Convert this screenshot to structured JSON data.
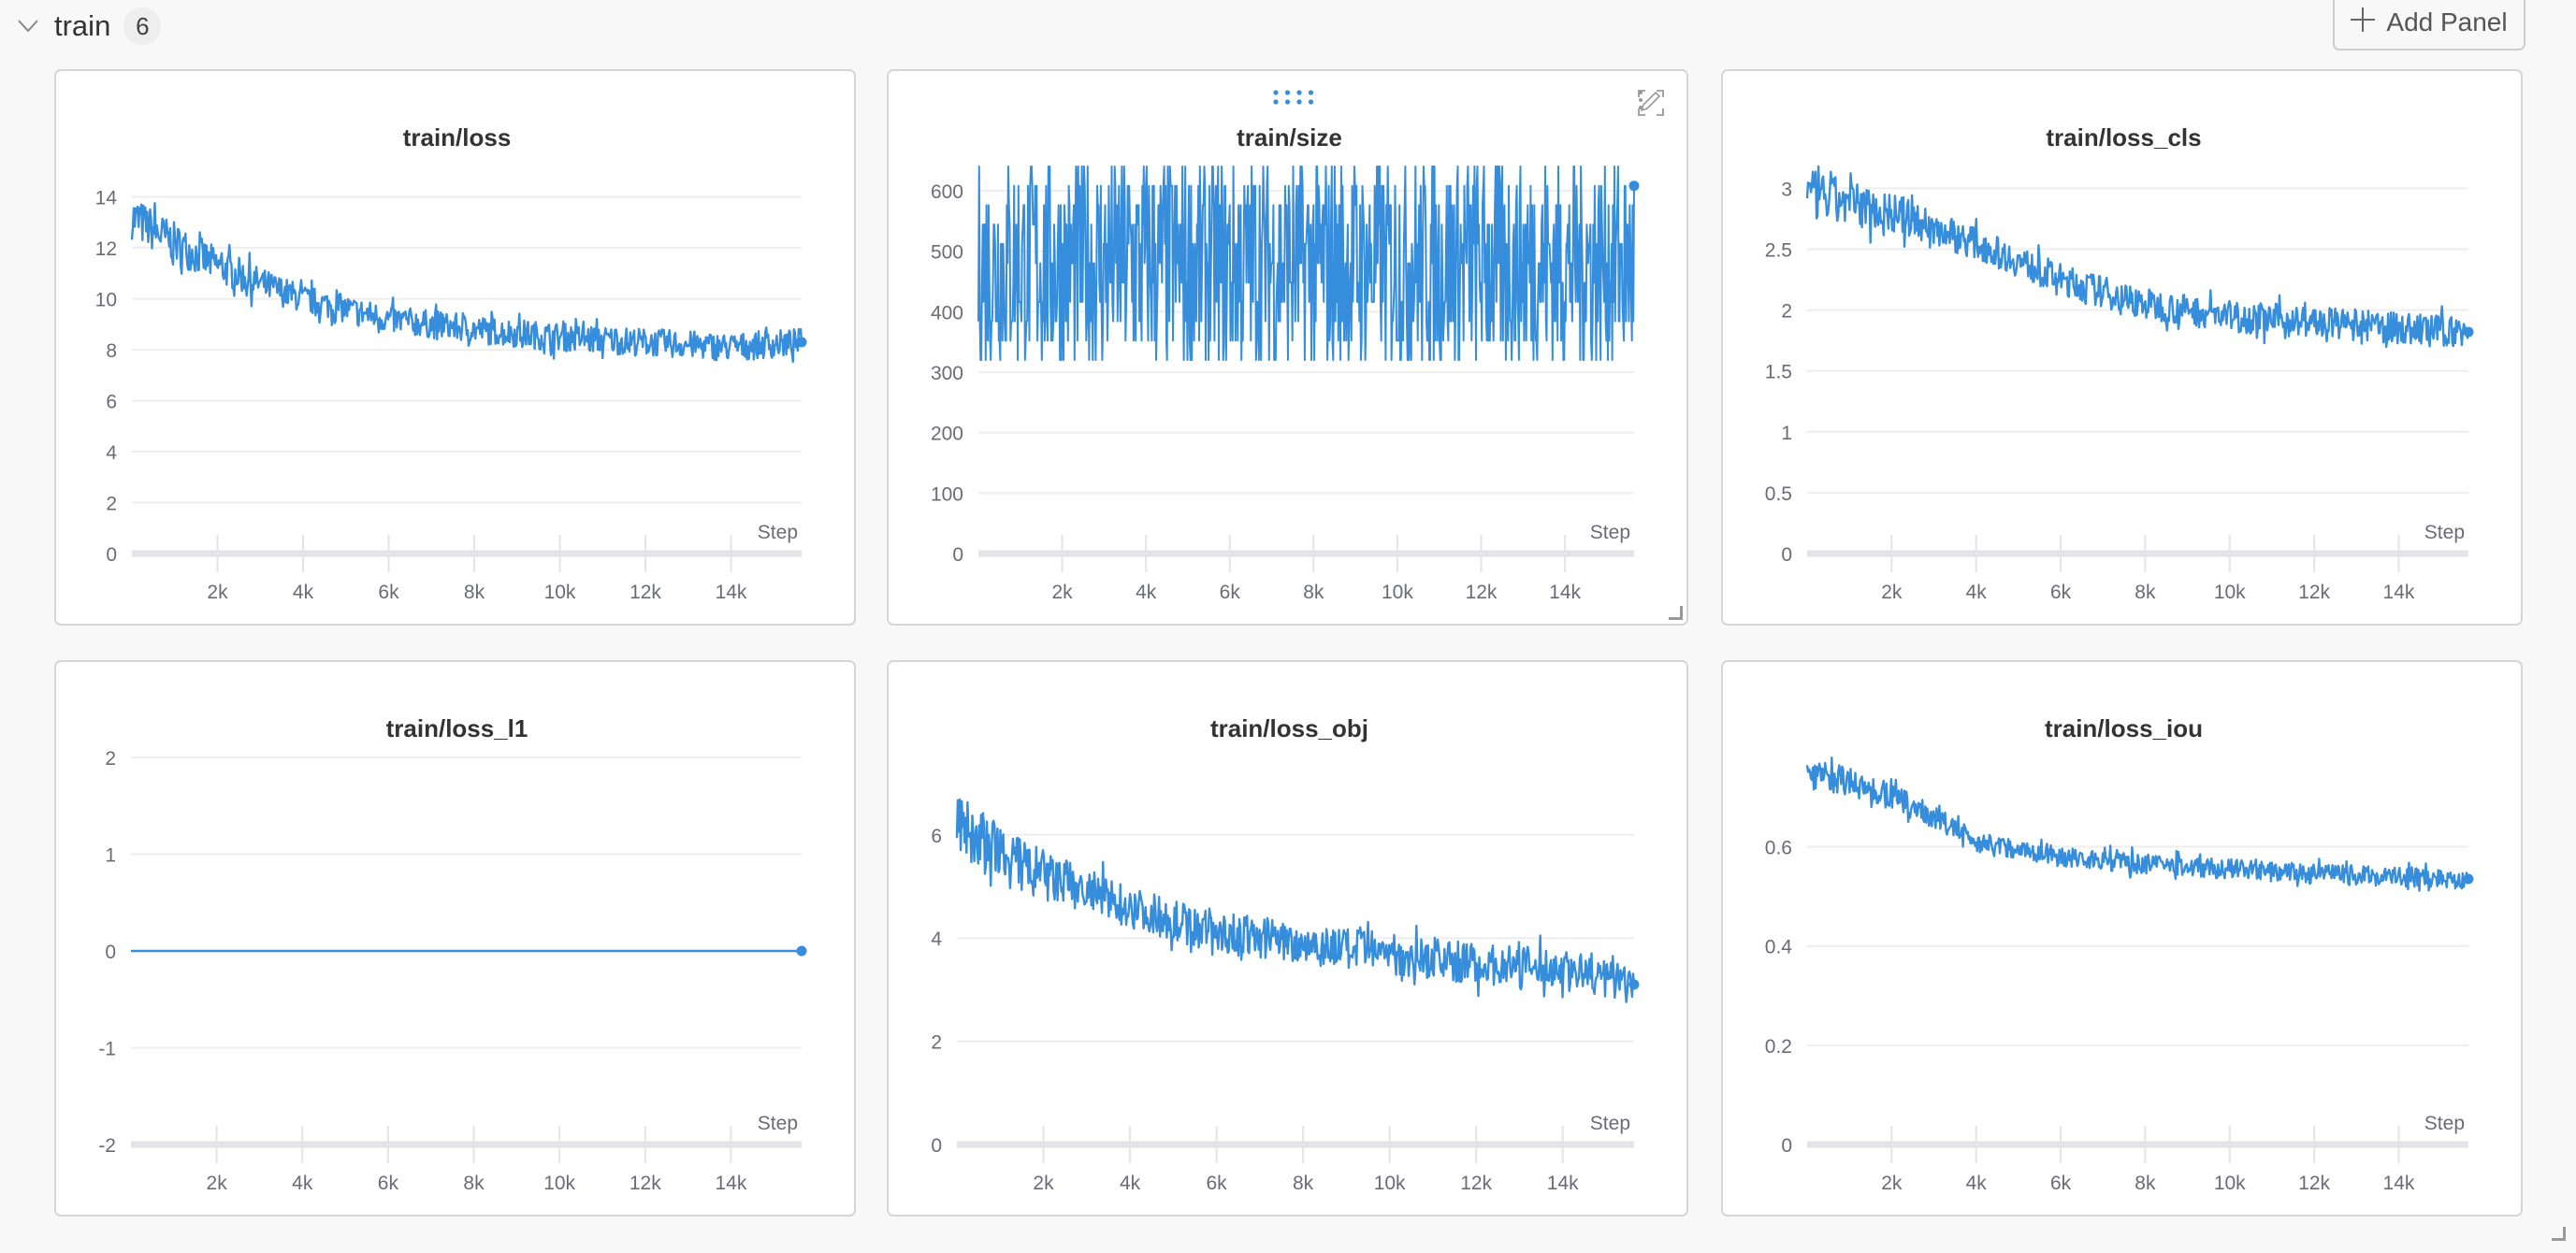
{
  "section": {
    "title": "train",
    "count": "6",
    "collapse_icon": "chevron-down-icon"
  },
  "toolbar": {
    "add_panel_label": "Add Panel",
    "add_icon": "plus-icon"
  },
  "colors": {
    "line": "#358ddb",
    "grid": "#eeeeee",
    "axis": "#e3e3e8",
    "tick_text": "#6b6b78",
    "title": "#333333"
  },
  "panel_tools": {
    "drag_icon": "drag-handle-icon",
    "edit_icon": "pencil-icon",
    "fullscreen_icon": "fullscreen-icon",
    "menu_icon": "kebab-menu-icon"
  },
  "chart_data": [
    {
      "type": "line",
      "title": "train/loss",
      "xlabel": "Step",
      "xlim": [
        0,
        15650
      ],
      "ylim": [
        0,
        15.2
      ],
      "xticks": [
        2000,
        4000,
        6000,
        8000,
        10000,
        12000,
        14000
      ],
      "xtick_labels": [
        "2k",
        "4k",
        "6k",
        "8k",
        "10k",
        "12k",
        "14k"
      ],
      "yticks": [
        0,
        2,
        4,
        6,
        8,
        10,
        12,
        14
      ],
      "ytick_labels": [
        "0",
        "2",
        "4",
        "6",
        "8",
        "10",
        "12",
        "14"
      ],
      "x": [
        0,
        1000,
        2000,
        3000,
        4000,
        6000,
        8000,
        10000,
        12000,
        14000,
        15650
      ],
      "y": [
        13.2,
        12.2,
        11.3,
        10.6,
        10.0,
        9.2,
        8.8,
        8.5,
        8.3,
        8.1,
        8.3
      ],
      "grid": true
    },
    {
      "type": "line",
      "title": "train/size",
      "xlabel": "Step",
      "xlim": [
        0,
        15650
      ],
      "ylim": [
        0,
        640
      ],
      "xticks": [
        2000,
        4000,
        6000,
        8000,
        10000,
        12000,
        14000
      ],
      "xtick_labels": [
        "2k",
        "4k",
        "6k",
        "8k",
        "10k",
        "12k",
        "14k"
      ],
      "yticks": [
        0,
        100,
        200,
        300,
        400,
        500,
        600
      ],
      "ytick_labels": [
        "0",
        "100",
        "200",
        "300",
        "400",
        "500",
        "600"
      ],
      "value_range": [
        320,
        640
      ],
      "last_value": 608,
      "grid": true
    },
    {
      "type": "line",
      "title": "train/loss_cls",
      "xlabel": "Step",
      "xlim": [
        0,
        15650
      ],
      "ylim": [
        0,
        3.18
      ],
      "xticks": [
        2000,
        4000,
        6000,
        8000,
        10000,
        12000,
        14000
      ],
      "xtick_labels": [
        "2k",
        "4k",
        "6k",
        "8k",
        "10k",
        "12k",
        "14k"
      ],
      "yticks": [
        0,
        0.5,
        1,
        1.5,
        2,
        2.5,
        3
      ],
      "ytick_labels": [
        "0",
        "0.5",
        "1",
        "1.5",
        "2",
        "2.5",
        "3"
      ],
      "x": [
        0,
        2000,
        4000,
        6000,
        8000,
        10000,
        12000,
        14000,
        15650
      ],
      "y": [
        2.95,
        2.8,
        2.55,
        2.25,
        2.05,
        1.95,
        1.9,
        1.85,
        1.82
      ],
      "grid": true
    },
    {
      "type": "line",
      "title": "train/loss_l1",
      "xlabel": "Step",
      "xlim": [
        0,
        15650
      ],
      "ylim": [
        -2,
        2
      ],
      "xticks": [
        2000,
        4000,
        6000,
        8000,
        10000,
        12000,
        14000
      ],
      "xtick_labels": [
        "2k",
        "4k",
        "6k",
        "8k",
        "10k",
        "12k",
        "14k"
      ],
      "yticks": [
        -2,
        -1,
        0,
        1,
        2
      ],
      "ytick_labels": [
        "-2",
        "-1",
        "0",
        "1",
        "2"
      ],
      "x": [
        0,
        15650
      ],
      "y": [
        0,
        0
      ],
      "grid": true
    },
    {
      "type": "line",
      "title": "train/loss_obj",
      "xlabel": "Step",
      "xlim": [
        0,
        15650
      ],
      "ylim": [
        0,
        7.5
      ],
      "xticks": [
        2000,
        4000,
        6000,
        8000,
        10000,
        12000,
        14000
      ],
      "xtick_labels": [
        "2k",
        "4k",
        "6k",
        "8k",
        "10k",
        "12k",
        "14k"
      ],
      "yticks": [
        0,
        2,
        4,
        6
      ],
      "ytick_labels": [
        "0",
        "2",
        "4",
        "6"
      ],
      "x": [
        0,
        1000,
        2000,
        4000,
        6000,
        8000,
        10000,
        12000,
        14000,
        15650
      ],
      "y": [
        6.2,
        5.6,
        5.2,
        4.6,
        4.1,
        3.9,
        3.7,
        3.5,
        3.4,
        3.1
      ],
      "grid": true
    },
    {
      "type": "line",
      "title": "train/loss_iou",
      "xlabel": "Step",
      "xlim": [
        0,
        15650
      ],
      "ylim": [
        0,
        0.78
      ],
      "xticks": [
        2000,
        4000,
        6000,
        8000,
        10000,
        12000,
        14000
      ],
      "xtick_labels": [
        "2k",
        "4k",
        "6k",
        "8k",
        "10k",
        "12k",
        "14k"
      ],
      "yticks": [
        0,
        0.2,
        0.4,
        0.6
      ],
      "ytick_labels": [
        "0",
        "0.2",
        "0.4",
        "0.6"
      ],
      "x": [
        0,
        1000,
        2000,
        3000,
        4000,
        6000,
        8000,
        10000,
        12000,
        14000,
        15650
      ],
      "y": [
        0.75,
        0.73,
        0.7,
        0.66,
        0.61,
        0.58,
        0.565,
        0.555,
        0.545,
        0.54,
        0.535
      ],
      "grid": true
    }
  ]
}
